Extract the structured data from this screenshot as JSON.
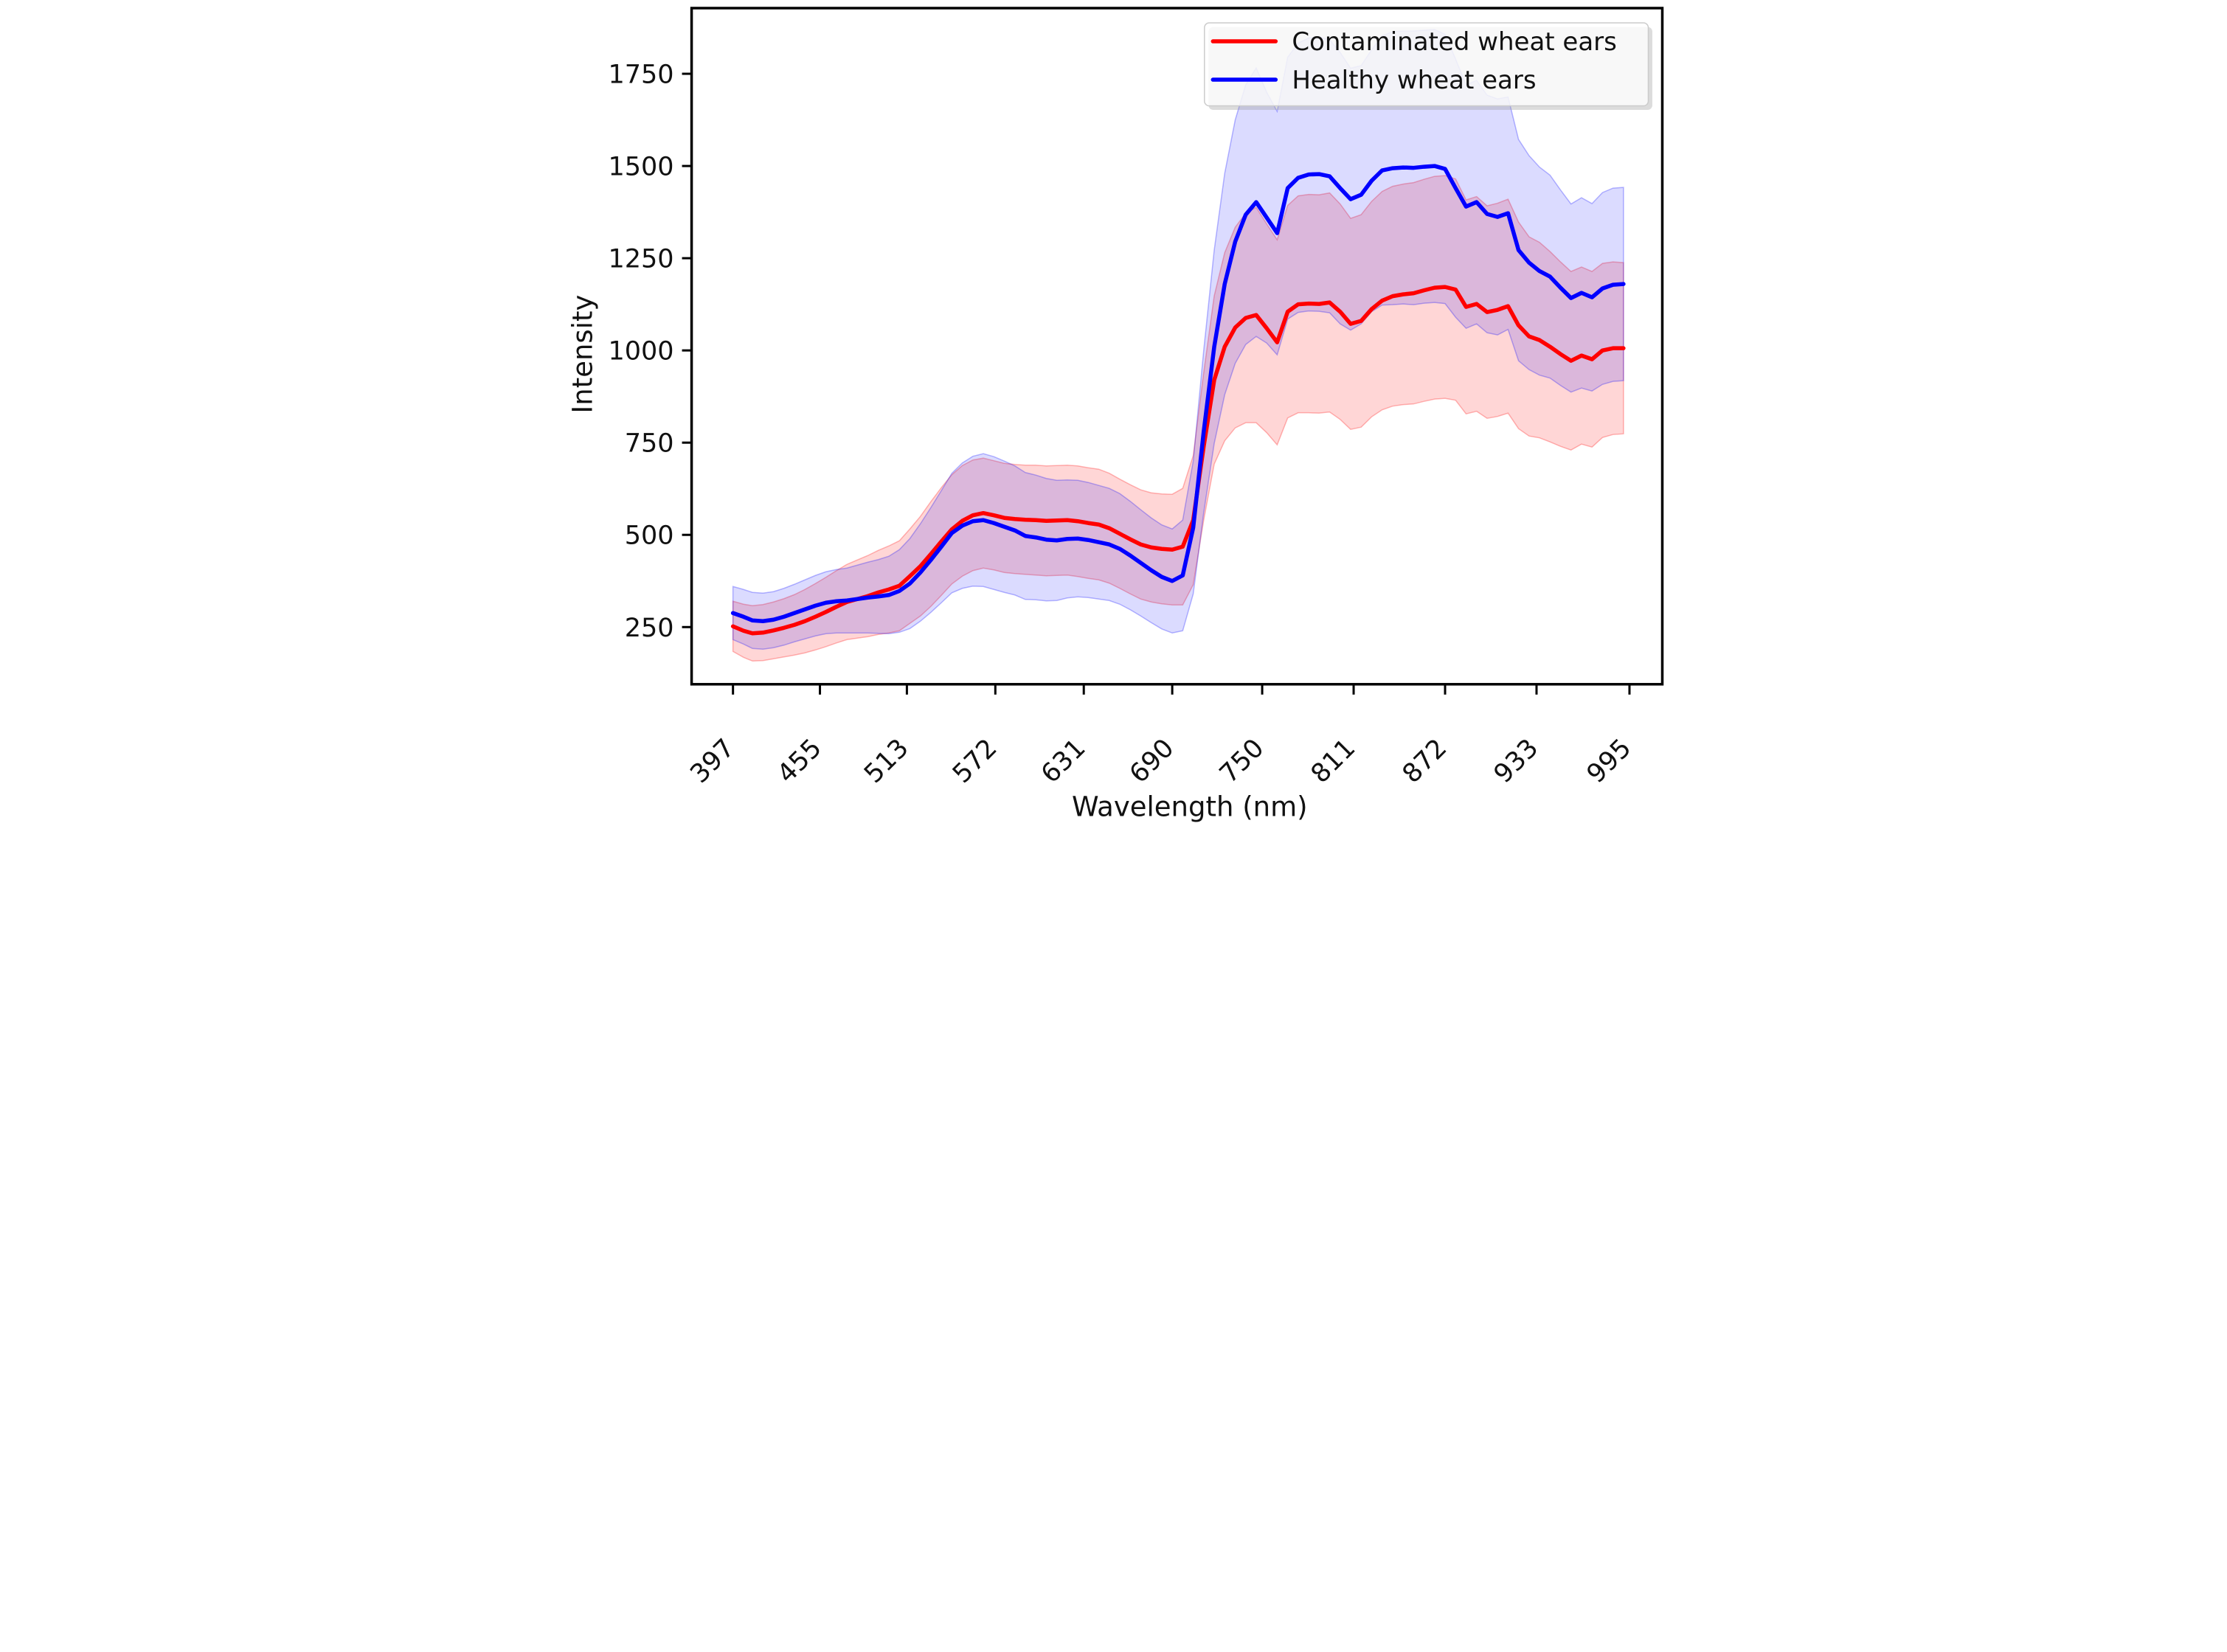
{
  "figure": {
    "background": "#ffffff",
    "spine_color": "#000000"
  },
  "legend": {
    "position": "upper right",
    "entries": [
      {
        "label": "Contaminated wheat ears",
        "color": "#ff0000"
      },
      {
        "label": "Healthy wheat ears",
        "color": "#0000ff"
      }
    ]
  },
  "chart_data": {
    "type": "line",
    "title": "",
    "xlabel": "Wavelength (nm)",
    "ylabel": "Intensity",
    "grid": false,
    "legend_position": "upper right",
    "xticks": [
      397,
      455,
      513,
      572,
      631,
      690,
      750,
      811,
      872,
      933,
      995
    ],
    "yticks": [
      250,
      500,
      750,
      1000,
      1250,
      1500,
      1750
    ],
    "xlim": [
      369.4,
      1016.9
    ],
    "ylim": [
      95,
      1928
    ],
    "band_note": "shaded bands are mean ± std for each series",
    "x": [
      397,
      404,
      410,
      417,
      424,
      431,
      438,
      445,
      452,
      459,
      466,
      473,
      480,
      487,
      494,
      501,
      508,
      515,
      522,
      529,
      536,
      543,
      550,
      557,
      564,
      571,
      578,
      585,
      592,
      599,
      606,
      613,
      620,
      627,
      634,
      641,
      648,
      655,
      662,
      669,
      676,
      683,
      690,
      697,
      704,
      711,
      718,
      725,
      732,
      739,
      746,
      753,
      760,
      767,
      774,
      781,
      788,
      795,
      802,
      809,
      816,
      823,
      830,
      837,
      844,
      851,
      858,
      865,
      872,
      879,
      886,
      893,
      900,
      907,
      914,
      921,
      928,
      935,
      942,
      949,
      956,
      963,
      970,
      977,
      984,
      991
    ],
    "series": [
      {
        "name": "Contaminated wheat ears",
        "color": "#ff0000",
        "fill_alpha": 0.16,
        "line_width": 11,
        "values": [
          252,
          240,
          233,
          235,
          241,
          248,
          256,
          266,
          278,
          291,
          305,
          318,
          326,
          334,
          344,
          352,
          362,
          388,
          415,
          448,
          482,
          515,
          538,
          553,
          559,
          553,
          546,
          543,
          541,
          540,
          538,
          539,
          540,
          537,
          532,
          528,
          518,
          503,
          488,
          474,
          466,
          462,
          460,
          468,
          540,
          740,
          920,
          1010,
          1062,
          1088,
          1096,
          1060,
          1022,
          1105,
          1125,
          1127,
          1126,
          1130,
          1105,
          1072,
          1080,
          1112,
          1135,
          1147,
          1152,
          1155,
          1163,
          1170,
          1172,
          1165,
          1118,
          1126,
          1104,
          1110,
          1120,
          1068,
          1038,
          1028,
          1010,
          990,
          972,
          986,
          976,
          1000,
          1006,
          1006
        ],
        "std": [
          68,
          72,
          75,
          76,
          77,
          79,
          82,
          86,
          90,
          94,
          98,
          102,
          106,
          110,
          114,
          118,
          122,
          128,
          135,
          142,
          146,
          148,
          150,
          150,
          149,
          148,
          148,
          148,
          148,
          149,
          149,
          149,
          149,
          150,
          150,
          150,
          149,
          148,
          148,
          148,
          148,
          149,
          150,
          158,
          175,
          200,
          228,
          255,
          272,
          284,
          292,
          283,
          278,
          288,
          294,
          296,
          296,
          297,
          292,
          286,
          288,
          292,
          296,
          298,
          299,
          300,
          301,
          302,
          302,
          300,
          290,
          291,
          288,
          289,
          290,
          280,
          270,
          265,
          258,
          250,
          242,
          240,
          238,
          236,
          234,
          232
        ]
      },
      {
        "name": "Healthy wheat ears",
        "color": "#0000ff",
        "fill_alpha": 0.14,
        "line_width": 11,
        "values": [
          288,
          278,
          268,
          266,
          270,
          278,
          288,
          298,
          308,
          316,
          320,
          322,
          326,
          330,
          333,
          337,
          348,
          368,
          398,
          432,
          468,
          505,
          525,
          537,
          540,
          532,
          522,
          512,
          497,
          493,
          487,
          485,
          489,
          490,
          486,
          480,
          474,
          462,
          444,
          424,
          404,
          386,
          375,
          390,
          520,
          780,
          1010,
          1180,
          1295,
          1368,
          1402,
          1360,
          1318,
          1440,
          1468,
          1477,
          1478,
          1472,
          1440,
          1410,
          1422,
          1460,
          1488,
          1494,
          1496,
          1495,
          1498,
          1500,
          1492,
          1440,
          1390,
          1402,
          1370,
          1362,
          1372,
          1272,
          1238,
          1215,
          1200,
          1170,
          1142,
          1156,
          1144,
          1168,
          1178,
          1180
        ],
        "std": [
          72,
          74,
          76,
          76,
          76,
          77,
          78,
          80,
          82,
          84,
          86,
          88,
          92,
          96,
          100,
          105,
          112,
          122,
          132,
          142,
          152,
          162,
          170,
          176,
          180,
          180,
          178,
          175,
          172,
          169,
          166,
          163,
          160,
          158,
          156,
          154,
          152,
          150,
          147,
          144,
          142,
          141,
          141,
          150,
          180,
          220,
          262,
          300,
          330,
          352,
          364,
          340,
          330,
          355,
          365,
          370,
          372,
          370,
          368,
          355,
          350,
          355,
          365,
          370,
          370,
          371,
          370,
          370,
          365,
          350,
          330,
          330,
          322,
          320,
          315,
          300,
          290,
          282,
          275,
          265,
          255,
          258,
          254,
          260,
          262,
          262
        ]
      }
    ]
  }
}
